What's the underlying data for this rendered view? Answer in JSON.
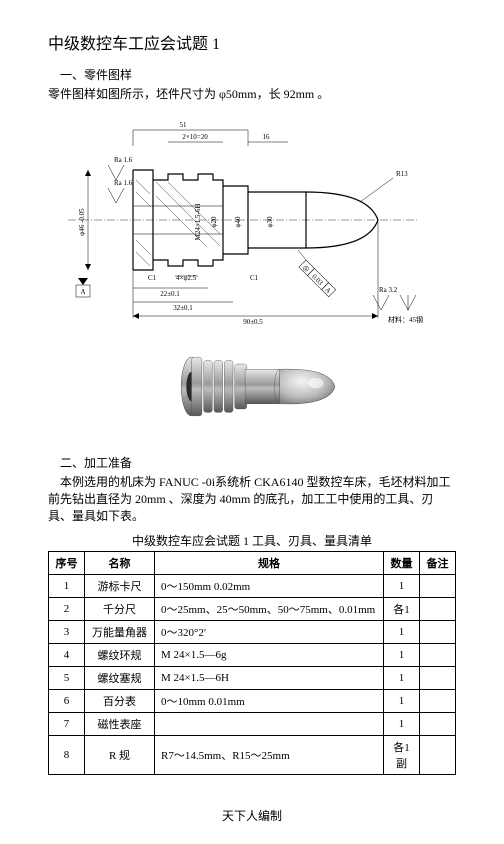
{
  "title": "中级数控车工应会试题 1",
  "section1": {
    "heading": "一、零件图样",
    "text": "零件图样如图所示，坯件尺寸为 φ50mm，长 92mm 。"
  },
  "drawing": {
    "dims": {
      "top_51": "51",
      "top_2x10": "2×10=20",
      "top_16": "16",
      "r13": "R13",
      "ra16_1": "Ra 1.6",
      "ra16_2": "Ra 1.6",
      "d46": "φ46 -0.05",
      "d40": "φ40",
      "m24": "M24×1.5-6H",
      "d20": "φ20",
      "d30": "φ30",
      "slot": "4×φ2.5",
      "c1_l": "C1",
      "c1_r": "C1",
      "len_22": "22±0.1",
      "len_32": "32±0.1",
      "len_90": "90±0.5",
      "ra32": "Ra 3.2",
      "material": "材料：45钢",
      "gd_a": "A",
      "gd_tol": "0.03",
      "gd_sym": "◎"
    }
  },
  "section2": {
    "heading": "二、加工准备",
    "text1": "本例选用的机床为 FANUC -0i系统析 CKA6140 型数控车床，毛坯材料加工前先钻出直径为 20mm 、深度为 40mm 的底孔，加工工中使用的工具、刃具、量具如下表。",
    "caption": "中级数控车应会试题 1 工具、刃具、量具清单"
  },
  "table": {
    "headers": [
      "序号",
      "名称",
      "规格",
      "数量",
      "备注"
    ],
    "rows": [
      [
        "1",
        "游标卡尺",
        "0～150mm  0.02mm",
        "1",
        ""
      ],
      [
        "2",
        "千分尺",
        "0～25mm、25～50mm、50～75mm、0.01mm",
        "各1",
        ""
      ],
      [
        "3",
        "万能量角器",
        "0～320°2′",
        "1",
        ""
      ],
      [
        "4",
        "螺纹环规",
        "M 24×1.5—6g",
        "1",
        ""
      ],
      [
        "5",
        "螺纹塞规",
        "M 24×1.5—6H",
        "1",
        ""
      ],
      [
        "6",
        "百分表",
        "0～10mm   0.01mm",
        "1",
        ""
      ],
      [
        "7",
        "磁性表座",
        "",
        "1",
        ""
      ],
      [
        "8",
        "R 规",
        "R7～14.5mm、R15～25mm",
        "各1副",
        ""
      ]
    ],
    "col_widths": [
      "36px",
      "70px",
      "auto",
      "36px",
      "36px"
    ]
  },
  "footer": "天下人编制"
}
